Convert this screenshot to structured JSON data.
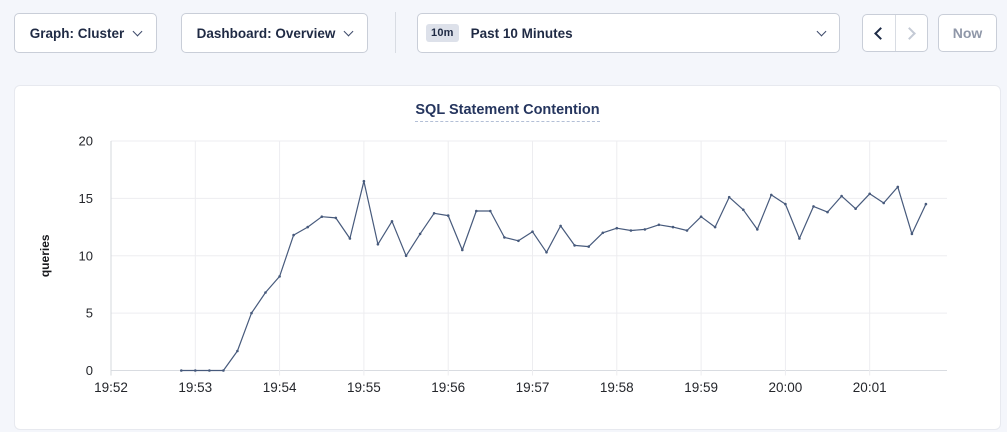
{
  "page": {
    "background": "#f4f6fb"
  },
  "toolbar": {
    "graph_dropdown": {
      "label": "Graph: Cluster"
    },
    "dashboard_dropdown": {
      "label": "Dashboard: Overview"
    },
    "time_window": {
      "badge": "10m",
      "label": "Past 10 Minutes"
    },
    "nav": {
      "prev_enabled": true,
      "next_enabled": false
    },
    "now_label": "Now"
  },
  "icons": {
    "dropdown_caret": "chevron-down",
    "prev": "chevron-left",
    "next": "chevron-right"
  },
  "chart_data": {
    "type": "line",
    "title": "SQL Statement Contention",
    "xlabel": "",
    "ylabel": "queries",
    "ylim": [
      0,
      20
    ],
    "yticks": [
      0,
      5,
      10,
      15,
      20
    ],
    "x_tick_labels": [
      "19:52",
      "19:53",
      "19:54",
      "19:55",
      "19:56",
      "19:57",
      "19:58",
      "19:59",
      "20:00",
      "20:01"
    ],
    "x_tick_seconds": [
      0,
      60,
      120,
      180,
      240,
      300,
      360,
      420,
      480,
      540
    ],
    "x_domain_seconds": [
      0,
      595
    ],
    "grid": true,
    "legend": "none",
    "line_color": "#475a7c",
    "gridline_color": "#ededf0",
    "axis_color": "#d5d8dd",
    "series": [
      {
        "name": "queries",
        "color": "#475a7c",
        "start_offset_sec": 50,
        "interval_sec": 10,
        "values": [
          0,
          0,
          0,
          0,
          1.7,
          5,
          6.8,
          8.2,
          11.8,
          12.5,
          13.4,
          13.3,
          11.5,
          16.5,
          11,
          13,
          10,
          11.9,
          13.7,
          13.5,
          10.5,
          13.9,
          13.9,
          11.6,
          11.3,
          12.1,
          10.3,
          12.6,
          10.9,
          10.8,
          12,
          12.4,
          12.2,
          12.3,
          12.7,
          12.5,
          12.2,
          13.4,
          12.5,
          15.1,
          14,
          12.3,
          15.3,
          14.5,
          11.5,
          14.3,
          13.8,
          15.2,
          14.1,
          15.4,
          14.6,
          16,
          11.9,
          14.5
        ]
      }
    ]
  }
}
